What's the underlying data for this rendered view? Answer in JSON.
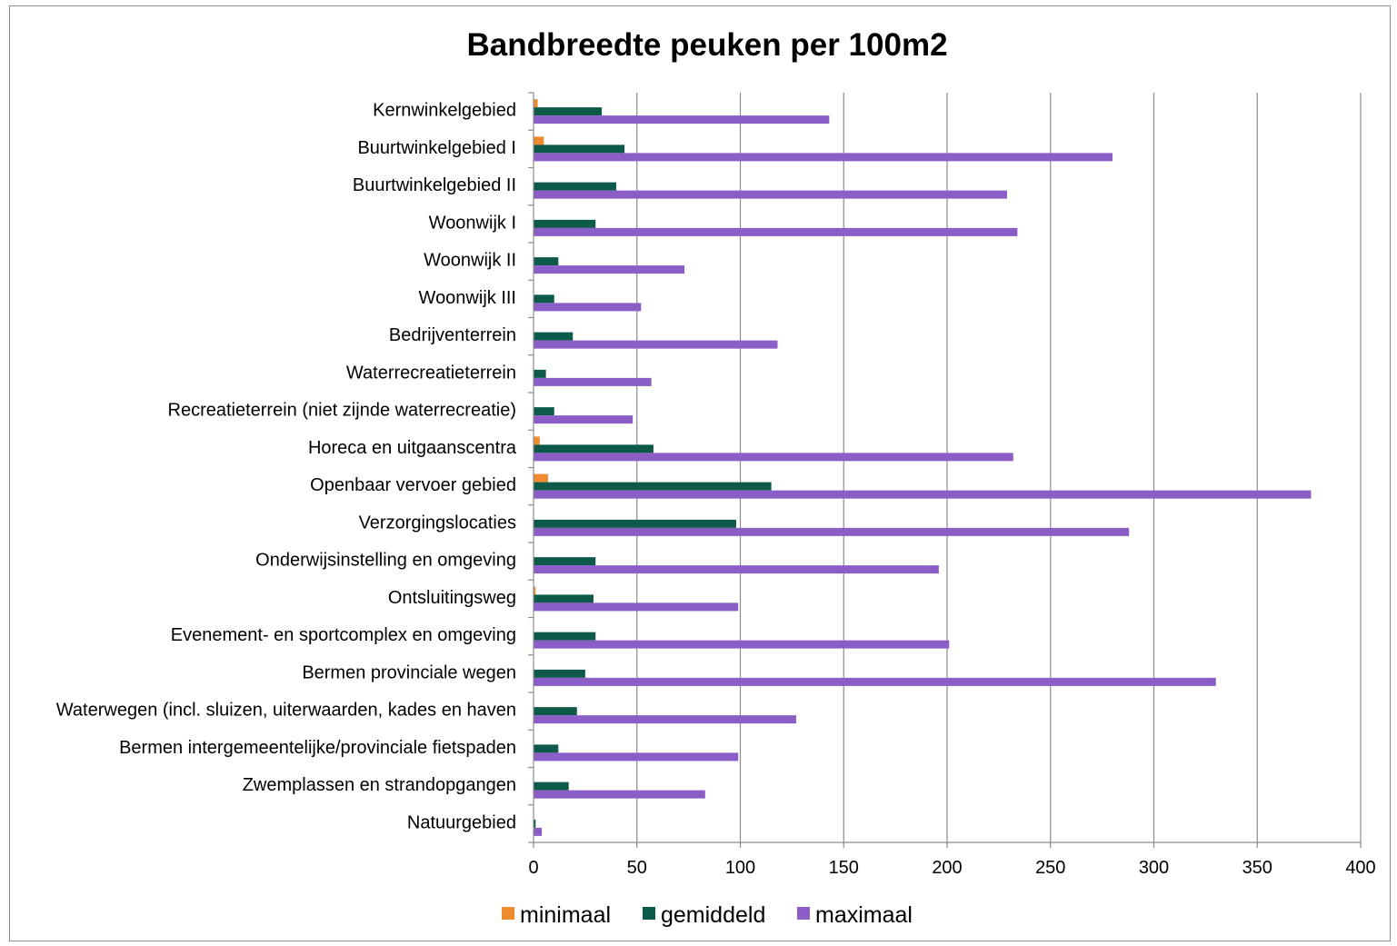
{
  "chart_data": {
    "type": "bar",
    "orientation": "horizontal",
    "title": "Bandbreedte peuken per 100m2",
    "xlabel": "",
    "ylabel": "",
    "xlim": [
      0,
      400
    ],
    "xticks": [
      0,
      50,
      100,
      150,
      200,
      250,
      300,
      350,
      400
    ],
    "grid": "vertical",
    "legend": "bottom",
    "categories": [
      "Kernwinkelgebied",
      "Buurtwinkelgebied I",
      "Buurtwinkelgebied II",
      "Woonwijk I",
      "Woonwijk II",
      "Woonwijk III",
      "Bedrijventerrein",
      "Waterrecreatieterrein",
      "Recreatieterrein (niet zijnde waterrecreatie)",
      "Horeca en uitgaanscentra",
      "Openbaar vervoer gebied",
      "Verzorgingslocaties",
      "Onderwijsinstelling en omgeving",
      "Ontsluitingsweg",
      "Evenement- en sportcomplex en omgeving",
      "Bermen provinciale wegen",
      "Waterwegen (incl. sluizen, uiterwaarden, kades en haven",
      "Bermen intergemeentelijke/provinciale fietspaden",
      "Zwemplassen en strandopgangen",
      "Natuurgebied"
    ],
    "series": [
      {
        "name": "minimaal",
        "color": "#ED8B2E",
        "values": [
          2,
          5,
          0,
          0,
          0,
          0,
          0,
          0,
          0,
          3,
          7,
          0,
          0,
          1,
          0,
          0,
          0,
          0,
          0,
          0
        ]
      },
      {
        "name": "gemiddeld",
        "color": "#0E5A4A",
        "values": [
          33,
          44,
          40,
          30,
          12,
          10,
          19,
          6,
          10,
          58,
          115,
          98,
          30,
          29,
          30,
          25,
          21,
          12,
          17,
          1
        ]
      },
      {
        "name": "maximaal",
        "color": "#8B5DC6",
        "values": [
          143,
          280,
          229,
          234,
          73,
          52,
          118,
          57,
          48,
          232,
          376,
          288,
          196,
          99,
          201,
          330,
          127,
          99,
          83,
          4
        ]
      }
    ]
  }
}
